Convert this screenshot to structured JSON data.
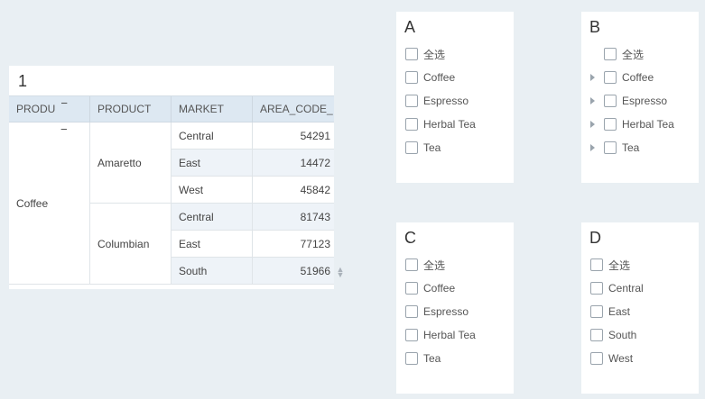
{
  "table_panel": {
    "title": "1",
    "headers": [
      "PRODU",
      "PRODUCT",
      "MARKET",
      "AREA_CODE_"
    ],
    "collapse_symbol": "−",
    "group": "Coffee",
    "subgroups": [
      "Amaretto",
      "Columbian"
    ],
    "rows": [
      {
        "market": "Central",
        "area_code": "54291"
      },
      {
        "market": "East",
        "area_code": "14472"
      },
      {
        "market": "West",
        "area_code": "45842"
      },
      {
        "market": "Central",
        "area_code": "81743"
      },
      {
        "market": "East",
        "area_code": "77123"
      },
      {
        "market": "South",
        "area_code": "51966"
      }
    ]
  },
  "filter_a": {
    "title": "A",
    "options": [
      "全选",
      "Coffee",
      "Espresso",
      "Herbal Tea",
      "Tea"
    ]
  },
  "filter_b": {
    "title": "B",
    "options": [
      "全选",
      "Coffee",
      "Espresso",
      "Herbal Tea",
      "Tea"
    ]
  },
  "filter_c": {
    "title": "C",
    "options": [
      "全选",
      "Coffee",
      "Espresso",
      "Herbal Tea",
      "Tea"
    ]
  },
  "filter_d": {
    "title": "D",
    "options": [
      "全选",
      "Central",
      "East",
      "South",
      "West"
    ]
  }
}
